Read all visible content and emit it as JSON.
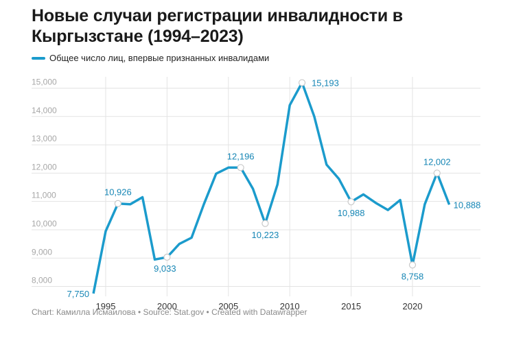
{
  "title": "Новые случаи регистрации инвалидности в Кыргызстане (1994–2023)",
  "footer": {
    "text": "Chart: Камилла Исмаилова • Source: Stat.gov • Created with Datawrapper"
  },
  "colors": {
    "line": "#1b9bcc",
    "label": "#1686b5",
    "grid": "#e3e3e3",
    "ytick": "#a7a7a7",
    "xtick": "#333333"
  },
  "chart_data": {
    "type": "line",
    "title": "Новые случаи регистрации инвалидности в Кыргызстане (1994–2023)",
    "xlabel": "",
    "ylabel": "",
    "legend": "top-left",
    "grid": true,
    "xlim": [
      1993.1,
      2023.3
    ],
    "ylim": [
      7650,
      15400
    ],
    "x_ticks": [
      1995,
      2000,
      2005,
      2010,
      2015,
      2020
    ],
    "x_tick_labels": [
      "1995",
      "2000",
      "2005",
      "2010",
      "2015",
      "2020"
    ],
    "y_ticks": [
      8000,
      9000,
      10000,
      11000,
      12000,
      13000,
      14000,
      15000
    ],
    "y_tick_labels": [
      "8,000",
      "9,000",
      "10,000",
      "11,000",
      "12,000",
      "13,000",
      "14,000",
      "15,000"
    ],
    "series": [
      {
        "name": "Общее число лиц, впервые признанных инвалидами",
        "x": [
          1994,
          1995,
          1996,
          1997,
          1998,
          1999,
          2000,
          2001,
          2002,
          2003,
          2004,
          2005,
          2006,
          2007,
          2008,
          2009,
          2010,
          2011,
          2012,
          2013,
          2014,
          2015,
          2016,
          2017,
          2018,
          2019,
          2020,
          2021,
          2022,
          2023
        ],
        "values": [
          7750,
          9950,
          10926,
          10900,
          11150,
          8950,
          9033,
          9500,
          9720,
          10900,
          11980,
          12196,
          12196,
          11450,
          10223,
          11600,
          14400,
          15193,
          14000,
          12300,
          11800,
          10988,
          11250,
          10950,
          10700,
          11050,
          8758,
          10900,
          12002,
          10888
        ]
      }
    ],
    "annotations": [
      {
        "x": 1994,
        "value": 7750,
        "label": "7,750",
        "marker": false
      },
      {
        "x": 1996,
        "value": 10926,
        "label": "10,926",
        "marker": true
      },
      {
        "x": 2000,
        "value": 9033,
        "label": "9,033",
        "marker": true
      },
      {
        "x": 2006,
        "value": 12196,
        "label": "12,196",
        "marker": true
      },
      {
        "x": 2008,
        "value": 10223,
        "label": "10,223",
        "marker": true
      },
      {
        "x": 2011,
        "value": 15193,
        "label": "15,193",
        "marker": true
      },
      {
        "x": 2015,
        "value": 10988,
        "label": "10,988",
        "marker": true
      },
      {
        "x": 2020,
        "value": 8758,
        "label": "8,758",
        "marker": true
      },
      {
        "x": 2022,
        "value": 12002,
        "label": "12,002",
        "marker": true
      },
      {
        "x": 2023,
        "value": 10888,
        "label": "10,888",
        "marker": false
      }
    ]
  }
}
